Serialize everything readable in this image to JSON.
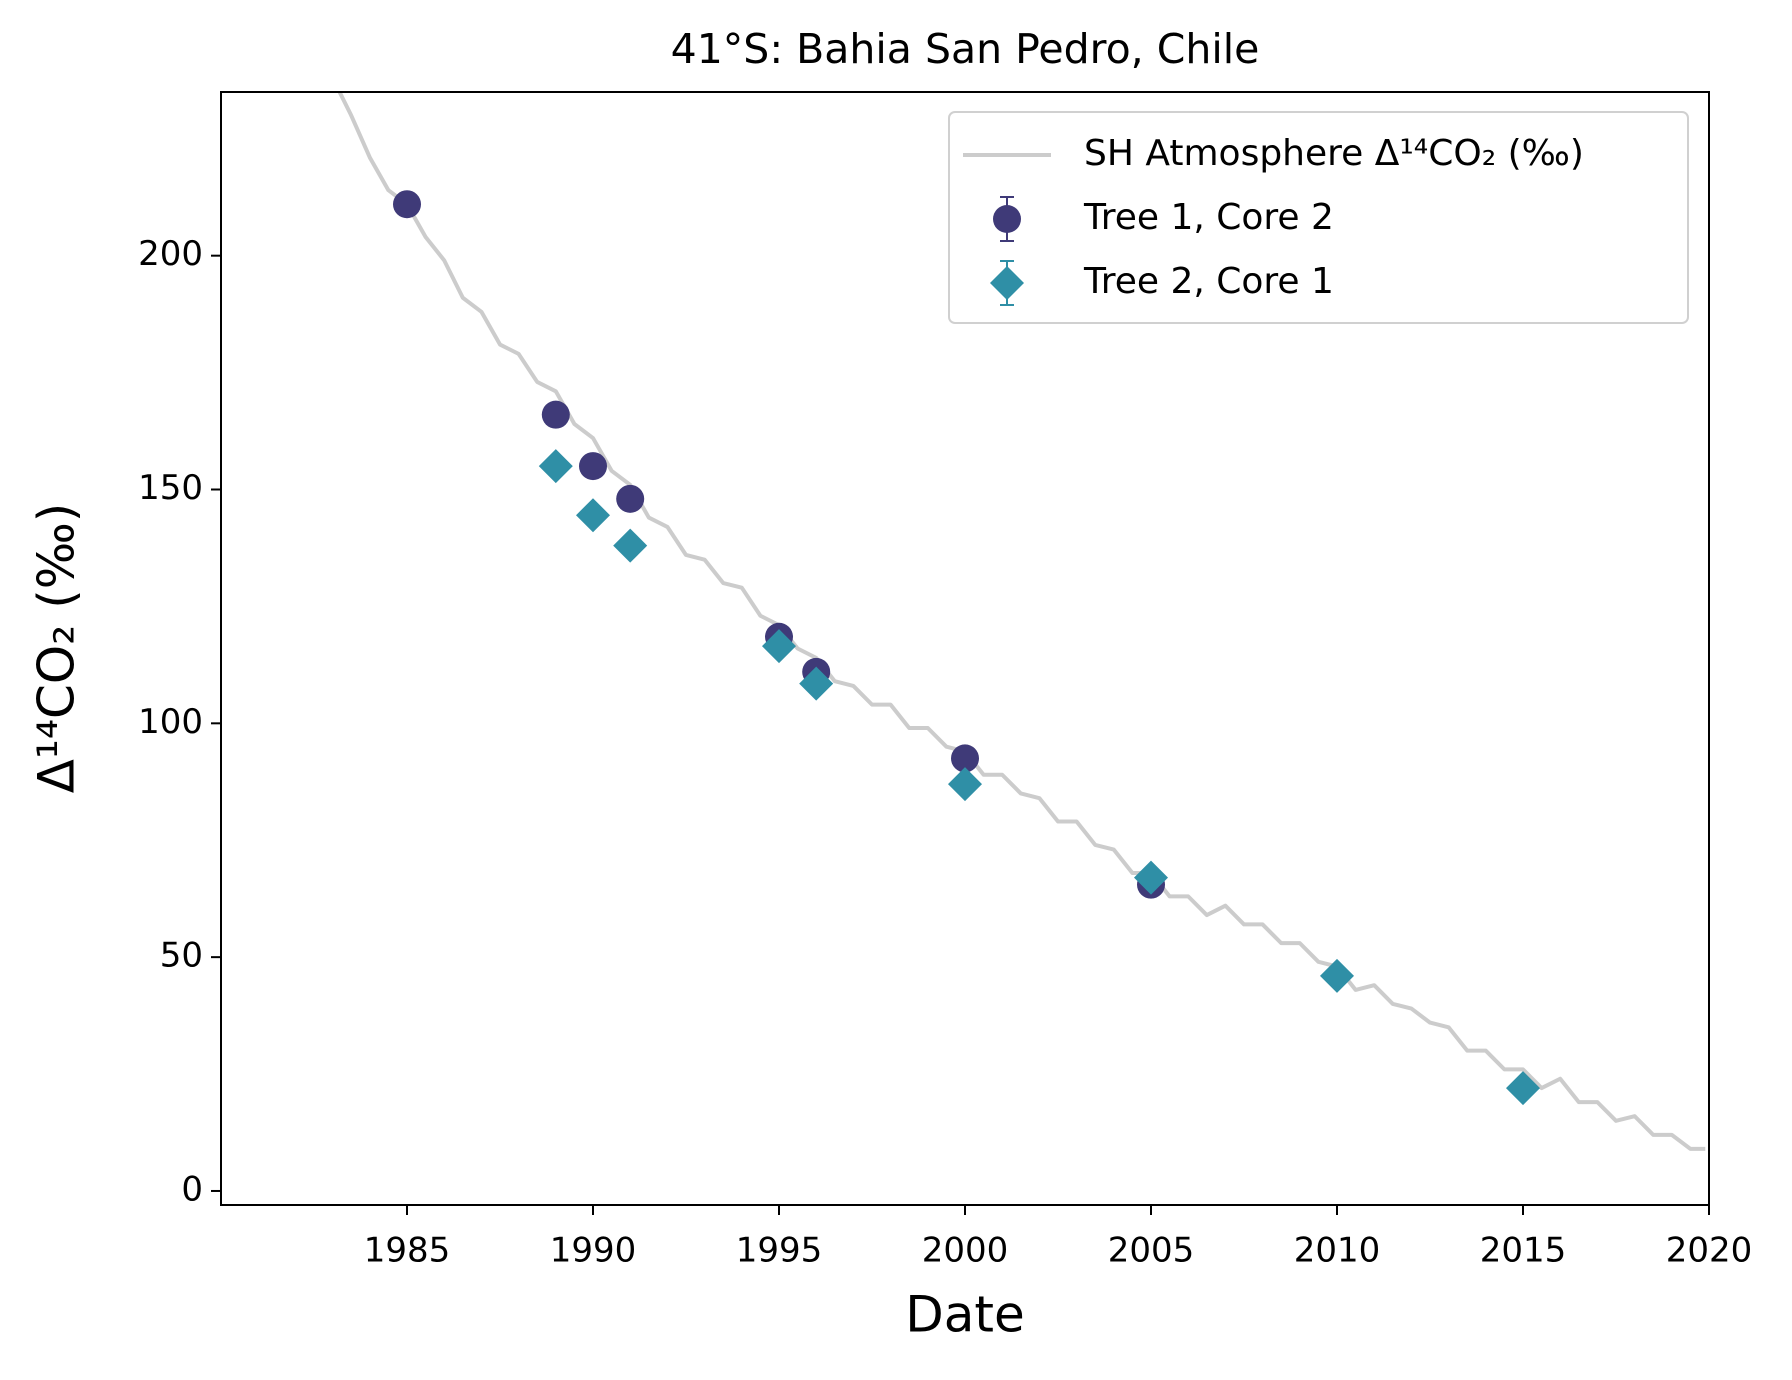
{
  "chart_data": {
    "type": "scatter",
    "title": "41°S: Bahia San Pedro, Chile",
    "xlabel": "Date",
    "ylabel": "Δ¹⁴CO₂ (‰)",
    "xlim": [
      1980,
      2020
    ],
    "ylim": [
      -3,
      235
    ],
    "xticks": [
      1985,
      1990,
      1995,
      2000,
      2005,
      2010,
      2015,
      2020
    ],
    "yticks": [
      0,
      50,
      100,
      150,
      200
    ],
    "legend": "upper right",
    "series": [
      {
        "name": "SH Atmosphere Δ¹⁴CO₂ (‰)",
        "color": "#cccccc",
        "marker": "none",
        "x": [
          1983.0,
          1983.5,
          1984.0,
          1984.5,
          1985.0,
          1985.5,
          1986.0,
          1986.5,
          1987.0,
          1987.5,
          1988.0,
          1988.5,
          1989.0,
          1989.5,
          1990.0,
          1990.5,
          1991.0,
          1991.5,
          1992.0,
          1992.5,
          1993.0,
          1993.5,
          1994.0,
          1994.5,
          1995.0,
          1995.5,
          1996.0,
          1996.5,
          1997.0,
          1997.5,
          1998.0,
          1998.5,
          1999.0,
          1999.5,
          2000.0,
          2000.5,
          2001.0,
          2001.5,
          2002.0,
          2002.5,
          2003.0,
          2003.5,
          2004.0,
          2004.5,
          2005.0,
          2005.5,
          2006.0,
          2006.5,
          2007.0,
          2007.5,
          2008.0,
          2008.5,
          2009.0,
          2009.5,
          2010.0,
          2010.5,
          2011.0,
          2011.5,
          2012.0,
          2012.5,
          2013.0,
          2013.5,
          2014.0,
          2014.5,
          2015.0,
          2015.5,
          2016.0,
          2016.5,
          2017.0,
          2017.5,
          2018.0,
          2018.5,
          2019.0,
          2019.5,
          2019.9
        ],
        "values": [
          238,
          230,
          221,
          214,
          211,
          204,
          199,
          191,
          188,
          181,
          179,
          173,
          171,
          164,
          161,
          154,
          151,
          144,
          142,
          136,
          135,
          130,
          129,
          123,
          121,
          116,
          114,
          109,
          108,
          104,
          104,
          99,
          99,
          95,
          94,
          89,
          89,
          85,
          84,
          79,
          79,
          74,
          73,
          68,
          68,
          63,
          63,
          59,
          61,
          57,
          57,
          53,
          53,
          49,
          48,
          43,
          44,
          40,
          39,
          36,
          35,
          30,
          30,
          26,
          26,
          22,
          24,
          19,
          19,
          15,
          16,
          12,
          12,
          9,
          9
        ]
      },
      {
        "name": "Tree 1, Core 2",
        "color": "#3f3a78",
        "marker": "circle",
        "x": [
          1985,
          1989,
          1990,
          1991,
          1995,
          1996,
          2000,
          2005
        ],
        "values": [
          211,
          166,
          155,
          148,
          118.5,
          111,
          92.5,
          65.5
        ]
      },
      {
        "name": "Tree 2, Core 1",
        "color": "#2f8fa6",
        "marker": "diamond",
        "x": [
          1989,
          1990,
          1991,
          1995,
          1996,
          2000,
          2005,
          2010,
          2015
        ],
        "values": [
          155,
          144.5,
          138,
          116.5,
          108.5,
          87,
          67,
          46,
          22
        ]
      }
    ]
  }
}
